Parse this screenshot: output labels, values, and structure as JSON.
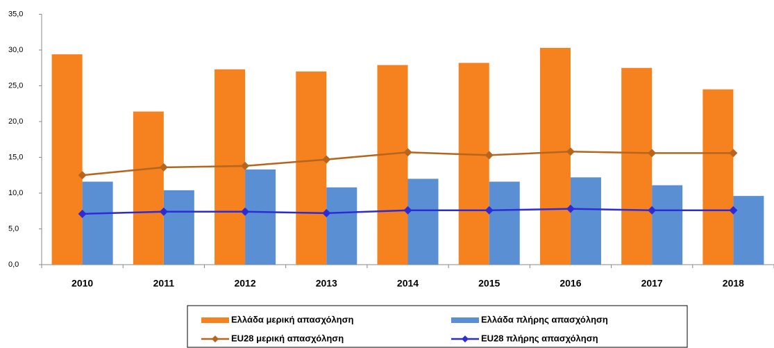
{
  "chart_data": {
    "type": "bar_line",
    "categories": [
      "2010",
      "2011",
      "2012",
      "2013",
      "2014",
      "2015",
      "2016",
      "2017",
      "2018"
    ],
    "series": [
      {
        "name": "Ελλάδα μερική απασχόληση",
        "kind": "bar",
        "color": "#f5821f",
        "values": [
          29.4,
          21.4,
          27.3,
          27.0,
          27.9,
          28.2,
          30.3,
          27.5,
          24.5
        ]
      },
      {
        "name": "Ελλάδα πλήρης απασχόληση",
        "kind": "bar",
        "color": "#5b8fd4",
        "values": [
          11.6,
          10.4,
          13.3,
          10.8,
          12.0,
          11.6,
          12.2,
          11.1,
          9.6
        ]
      },
      {
        "name": "EU28 μερική απασχόληση",
        "kind": "line",
        "color": "#b5651d",
        "values": [
          12.5,
          13.6,
          13.8,
          14.7,
          15.7,
          15.3,
          15.8,
          15.6,
          15.6
        ]
      },
      {
        "name": "EU28 πλήρης απασχόληση",
        "kind": "line",
        "color": "#2b2bd8",
        "values": [
          7.1,
          7.4,
          7.4,
          7.2,
          7.6,
          7.6,
          7.8,
          7.6,
          7.6
        ]
      }
    ],
    "ylim": [
      0,
      35
    ],
    "yticks": [
      {
        "value": 0,
        "label": "0,0"
      },
      {
        "value": 5,
        "label": "5,0"
      },
      {
        "value": 10,
        "label": "10,0"
      },
      {
        "value": 15,
        "label": "15,0"
      },
      {
        "value": 20,
        "label": "20,0"
      },
      {
        "value": 25,
        "label": "25,0"
      },
      {
        "value": 30,
        "label": "30,0"
      },
      {
        "value": 35,
        "label": "35,0"
      }
    ],
    "grid": false
  }
}
